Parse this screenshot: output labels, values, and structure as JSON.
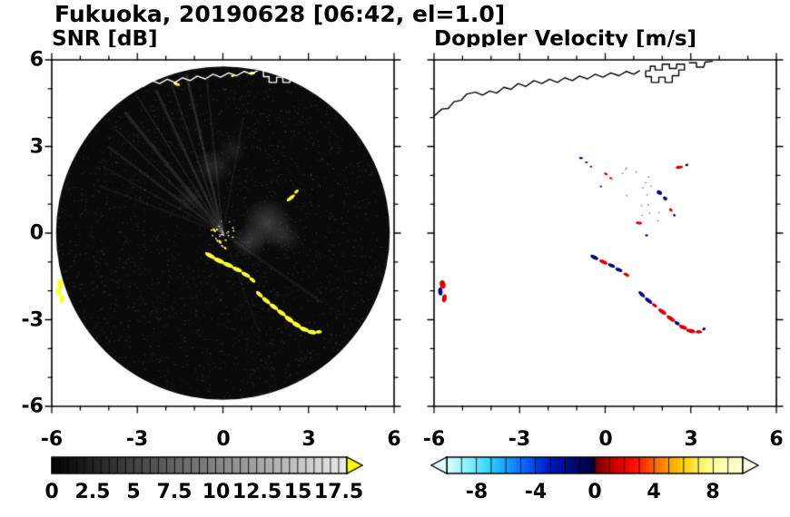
{
  "header": {
    "title": "Fukuoka, 20190628 [06:42, el=1.0]"
  },
  "colors": {
    "background": "#ffffff",
    "text": "#000000",
    "snr_echo": "#ffff3c",
    "vel_positive": "#d40000",
    "vel_negative": "#000078",
    "snr_disc": "#0a0a0a",
    "coast_snr": "#ffffff",
    "coast_vel": "#000000",
    "snr_overflow_arrow": "#ffff00"
  },
  "coastline": {
    "segments": [
      [
        [
          -6.0,
          4.05
        ],
        [
          -5.72,
          4.3
        ],
        [
          -5.5,
          4.32
        ],
        [
          -5.3,
          4.55
        ],
        [
          -5.05,
          4.6
        ],
        [
          -4.85,
          4.82
        ],
        [
          -4.55,
          4.88
        ],
        [
          -4.3,
          4.78
        ],
        [
          -4.05,
          4.92
        ],
        [
          -3.8,
          4.85
        ],
        [
          -3.55,
          5.05
        ],
        [
          -3.3,
          4.98
        ],
        [
          -3.05,
          5.18
        ],
        [
          -2.78,
          5.08
        ],
        [
          -2.5,
          5.28
        ],
        [
          -2.22,
          5.18
        ],
        [
          -1.95,
          5.33
        ],
        [
          -1.68,
          5.22
        ],
        [
          -1.42,
          5.38
        ],
        [
          -1.15,
          5.28
        ],
        [
          -0.9,
          5.44
        ],
        [
          -0.62,
          5.34
        ],
        [
          -0.35,
          5.5
        ],
        [
          -0.08,
          5.4
        ],
        [
          0.2,
          5.55
        ],
        [
          0.48,
          5.45
        ],
        [
          0.75,
          5.6
        ],
        [
          1.0,
          5.5
        ],
        [
          1.2,
          5.62
        ]
      ],
      [
        [
          1.42,
          5.62
        ],
        [
          1.42,
          5.42
        ],
        [
          1.62,
          5.42
        ],
        [
          1.62,
          5.22
        ],
        [
          1.88,
          5.22
        ],
        [
          1.88,
          5.4
        ],
        [
          2.1,
          5.4
        ],
        [
          2.1,
          5.22
        ],
        [
          2.35,
          5.22
        ],
        [
          2.35,
          5.45
        ],
        [
          2.58,
          5.45
        ],
        [
          2.58,
          5.65
        ],
        [
          2.78,
          5.65
        ],
        [
          2.78,
          5.85
        ],
        [
          2.5,
          5.85
        ],
        [
          2.5,
          5.7
        ],
        [
          2.25,
          5.7
        ],
        [
          2.25,
          5.85
        ],
        [
          2.0,
          5.85
        ],
        [
          2.0,
          5.65
        ],
        [
          1.75,
          5.65
        ],
        [
          1.75,
          5.78
        ],
        [
          1.58,
          5.78
        ],
        [
          1.58,
          5.62
        ],
        [
          1.42,
          5.62
        ]
      ],
      [
        [
          2.95,
          5.9
        ],
        [
          3.2,
          5.9
        ],
        [
          3.2,
          5.75
        ],
        [
          3.45,
          5.75
        ],
        [
          3.5,
          5.92
        ],
        [
          3.75,
          5.95
        ]
      ]
    ]
  },
  "chart_data": [
    {
      "type": "heatmap",
      "panel_id": "snr",
      "title": "SNR [dB]",
      "xlim": [
        -6,
        6
      ],
      "ylim": [
        -6,
        6
      ],
      "xticks": [
        -6,
        -3,
        0,
        3,
        6
      ],
      "yticks": [
        -6,
        -3,
        0,
        3,
        6
      ],
      "xtick_labels": [
        "-6",
        "-3",
        "0",
        "3",
        "6"
      ],
      "ytick_labels": [
        "6",
        "3",
        "0",
        "-3",
        "-6"
      ],
      "grid": false,
      "colorbar": {
        "range": [
          0,
          18
        ],
        "tick_step": 0.5,
        "values": [
          0,
          2.5,
          5,
          7.5,
          10,
          12.5,
          15,
          17.5
        ],
        "labels": [
          "0",
          "2.5",
          "5",
          "7.5",
          "10",
          "12.5",
          "15",
          "17.5"
        ],
        "colormap": "grayscale",
        "overflow_arrow_color": "#ffff00"
      },
      "radar_disc": {
        "center": [
          0,
          0
        ],
        "radius": 5.85,
        "color": "#0a0a0a"
      },
      "coast_color": "#ffffff",
      "echo_colors": {
        "y": "#ffff3c"
      },
      "rays": [
        {
          "ang": 96,
          "len": 5.4,
          "w": 2,
          "al": 0.08
        },
        {
          "ang": 103,
          "len": 5.7,
          "w": 3,
          "al": 0.12
        },
        {
          "ang": 109,
          "len": 5.6,
          "w": 2,
          "al": 0.09
        },
        {
          "ang": 115,
          "len": 5.5,
          "w": 3,
          "al": 0.11
        },
        {
          "ang": 122,
          "len": 5.5,
          "w": 2,
          "al": 0.08
        },
        {
          "ang": 129,
          "len": 5.4,
          "w": 4,
          "al": 0.1
        },
        {
          "ang": 136,
          "len": 5.2,
          "w": 2,
          "al": 0.07
        },
        {
          "ang": 143,
          "len": 5.0,
          "w": 3,
          "al": 0.08
        },
        {
          "ang": 151,
          "len": 4.8,
          "w": 2,
          "al": 0.06
        },
        {
          "ang": 159,
          "len": 4.6,
          "w": 2,
          "al": 0.05
        },
        {
          "ang": 80,
          "len": 4.0,
          "w": 2,
          "al": 0.05
        },
        {
          "ang": -35,
          "len": 4.2,
          "w": 3,
          "al": 0.05
        },
        {
          "ang": -70,
          "len": 3.6,
          "w": 2,
          "al": 0.04
        }
      ],
      "blobs": [
        {
          "x": 1.55,
          "y": 0.35,
          "r": 0.9,
          "al": 0.22
        },
        {
          "x": 0.9,
          "y": -0.3,
          "r": 0.6,
          "al": 0.18
        },
        {
          "x": 2.2,
          "y": -0.15,
          "r": 0.55,
          "al": 0.12
        },
        {
          "x": -0.3,
          "y": 2.3,
          "r": 0.65,
          "al": 0.12
        },
        {
          "x": 0.35,
          "y": 2.9,
          "r": 0.5,
          "al": 0.09
        },
        {
          "x": -1.2,
          "y": 1.2,
          "r": 0.5,
          "al": 0.08
        }
      ],
      "echoes": [
        {
          "x": -0.45,
          "y": -0.78,
          "w": 0.4,
          "h": 0.15,
          "rot": -30
        },
        {
          "x": -0.14,
          "y": -0.95,
          "w": 0.42,
          "h": 0.16,
          "rot": -25
        },
        {
          "x": 0.18,
          "y": -1.1,
          "w": 0.4,
          "h": 0.15,
          "rot": -22
        },
        {
          "x": 0.5,
          "y": -1.26,
          "w": 0.38,
          "h": 0.14,
          "rot": -22
        },
        {
          "x": 0.8,
          "y": -1.44,
          "w": 0.34,
          "h": 0.14,
          "rot": -28
        },
        {
          "x": 1.03,
          "y": -1.62,
          "w": 0.26,
          "h": 0.12,
          "rot": -38
        },
        {
          "x": 1.28,
          "y": -2.12,
          "w": 0.3,
          "h": 0.13,
          "rot": -42
        },
        {
          "x": 1.52,
          "y": -2.34,
          "w": 0.34,
          "h": 0.14,
          "rot": -38
        },
        {
          "x": 1.78,
          "y": -2.55,
          "w": 0.36,
          "h": 0.15,
          "rot": -35
        },
        {
          "x": 2.05,
          "y": -2.76,
          "w": 0.36,
          "h": 0.15,
          "rot": -34
        },
        {
          "x": 2.32,
          "y": -2.98,
          "w": 0.38,
          "h": 0.16,
          "rot": -35
        },
        {
          "x": 2.58,
          "y": -3.17,
          "w": 0.36,
          "h": 0.16,
          "rot": -30
        },
        {
          "x": 2.85,
          "y": -3.33,
          "w": 0.36,
          "h": 0.16,
          "rot": -20
        },
        {
          "x": 3.12,
          "y": -3.43,
          "w": 0.34,
          "h": 0.15,
          "rot": -10
        },
        {
          "x": 3.36,
          "y": -3.42,
          "w": 0.22,
          "h": 0.12,
          "rot": 6
        },
        {
          "x": -5.7,
          "y": -1.75,
          "w": 0.2,
          "h": 0.34,
          "rot": 15
        },
        {
          "x": -5.76,
          "y": -2.02,
          "w": 0.18,
          "h": 0.32,
          "rot": 4
        },
        {
          "x": -5.64,
          "y": -2.28,
          "w": 0.17,
          "h": 0.3,
          "rot": -12
        },
        {
          "x": 2.38,
          "y": 1.22,
          "w": 0.36,
          "h": 0.12,
          "rot": 38
        },
        {
          "x": 2.58,
          "y": 1.44,
          "w": 0.18,
          "h": 0.1,
          "rot": 38
        },
        {
          "x": -1.62,
          "y": 5.16,
          "w": 0.24,
          "h": 0.1,
          "rot": -18
        },
        {
          "x": 1.02,
          "y": 5.54,
          "w": 0.22,
          "h": 0.1,
          "rot": 8
        },
        {
          "x": 0.34,
          "y": 5.44,
          "w": 0.12,
          "h": 0.08,
          "rot": 0
        },
        {
          "x": -0.3,
          "y": 0.1,
          "w": 0.16,
          "h": 0.08,
          "rot": -45
        },
        {
          "x": -0.1,
          "y": -0.3,
          "w": 0.15,
          "h": 0.08,
          "rot": -55
        },
        {
          "x": 0.08,
          "y": -0.52,
          "w": 0.13,
          "h": 0.07,
          "rot": -50
        }
      ]
    },
    {
      "type": "heatmap",
      "panel_id": "vel",
      "title": "Doppler Velocity [m/s]",
      "xlim": [
        -6,
        6
      ],
      "ylim": [
        -6,
        6
      ],
      "xticks": [
        -6,
        -3,
        0,
        3,
        6
      ],
      "yticks": [
        -6,
        -3,
        0,
        3,
        6
      ],
      "xtick_labels": [
        "-6",
        "-3",
        "0",
        "3",
        "6"
      ],
      "ytick_labels": [],
      "grid": false,
      "colorbar": {
        "range": [
          -10,
          10
        ],
        "tick_step": 1,
        "values": [
          -8,
          -4,
          0,
          4,
          8
        ],
        "labels": [
          "-8",
          "-4",
          "0",
          "4",
          "8"
        ],
        "colormap_stops": [
          [
            0.0,
            "#d8ffff"
          ],
          [
            0.05,
            "#a0f8ff"
          ],
          [
            0.1,
            "#64e8ff"
          ],
          [
            0.15,
            "#30ccff"
          ],
          [
            0.2,
            "#18a0ff"
          ],
          [
            0.25,
            "#1070ff"
          ],
          [
            0.3,
            "#0840e8"
          ],
          [
            0.35,
            "#0018c0"
          ],
          [
            0.4,
            "#000d90"
          ],
          [
            0.45,
            "#000560"
          ],
          [
            0.495,
            "#000338"
          ],
          [
            0.505,
            "#700000"
          ],
          [
            0.55,
            "#b80000"
          ],
          [
            0.6,
            "#e80000"
          ],
          [
            0.65,
            "#ff2000"
          ],
          [
            0.7,
            "#ff6000"
          ],
          [
            0.75,
            "#ffa000"
          ],
          [
            0.8,
            "#ffd000"
          ],
          [
            0.85,
            "#fff060"
          ],
          [
            0.9,
            "#ffffa0"
          ],
          [
            1.0,
            "#ffffd8"
          ]
        ],
        "underflow_arrow_color": "#e0ffff",
        "overflow_arrow_color": "#ffffe8"
      },
      "coast_color": "#000000",
      "echo_colors": {
        "r": "#d40000",
        "b": "#000078",
        "k": "#303030"
      },
      "echoes": [
        {
          "x": -5.7,
          "y": -1.78,
          "w": 0.2,
          "h": 0.3,
          "rot": 12,
          "v": "r"
        },
        {
          "x": -5.78,
          "y": -2.02,
          "w": 0.15,
          "h": 0.28,
          "rot": 4,
          "v": "b"
        },
        {
          "x": -5.64,
          "y": -2.26,
          "w": 0.16,
          "h": 0.28,
          "rot": -10,
          "v": "r"
        },
        {
          "x": -0.38,
          "y": -0.84,
          "w": 0.3,
          "h": 0.13,
          "rot": -28,
          "v": "b"
        },
        {
          "x": -0.06,
          "y": -1.0,
          "w": 0.3,
          "h": 0.13,
          "rot": -24,
          "v": "r"
        },
        {
          "x": 0.22,
          "y": -1.12,
          "w": 0.26,
          "h": 0.12,
          "rot": -22,
          "v": "b"
        },
        {
          "x": 0.48,
          "y": -1.27,
          "w": 0.26,
          "h": 0.12,
          "rot": -22,
          "v": "b"
        },
        {
          "x": 0.74,
          "y": -1.44,
          "w": 0.22,
          "h": 0.11,
          "rot": -28,
          "v": "r"
        },
        {
          "x": 1.28,
          "y": -2.12,
          "w": 0.28,
          "h": 0.12,
          "rot": -42,
          "v": "b"
        },
        {
          "x": 1.52,
          "y": -2.34,
          "w": 0.3,
          "h": 0.13,
          "rot": -38,
          "v": "b"
        },
        {
          "x": 1.73,
          "y": -2.5,
          "w": 0.2,
          "h": 0.11,
          "rot": -36,
          "v": "r"
        },
        {
          "x": 2.0,
          "y": -2.72,
          "w": 0.32,
          "h": 0.14,
          "rot": -34,
          "v": "r"
        },
        {
          "x": 2.3,
          "y": -2.96,
          "w": 0.34,
          "h": 0.14,
          "rot": -34,
          "v": "r"
        },
        {
          "x": 2.52,
          "y": -3.12,
          "w": 0.2,
          "h": 0.12,
          "rot": -30,
          "v": "b"
        },
        {
          "x": 2.73,
          "y": -3.26,
          "w": 0.3,
          "h": 0.14,
          "rot": -22,
          "v": "r"
        },
        {
          "x": 3.0,
          "y": -3.39,
          "w": 0.32,
          "h": 0.14,
          "rot": -12,
          "v": "r"
        },
        {
          "x": 3.28,
          "y": -3.42,
          "w": 0.22,
          "h": 0.12,
          "rot": 0,
          "v": "r"
        },
        {
          "x": 3.46,
          "y": -3.32,
          "w": 0.12,
          "h": 0.1,
          "rot": 20,
          "v": "b"
        },
        {
          "x": -0.85,
          "y": 2.6,
          "w": 0.12,
          "h": 0.08,
          "rot": 0,
          "v": "b"
        },
        {
          "x": -0.66,
          "y": 2.45,
          "w": 0.1,
          "h": 0.07,
          "rot": 0,
          "v": "b"
        },
        {
          "x": -0.5,
          "y": 2.3,
          "w": 0.08,
          "h": 0.06,
          "rot": 0,
          "v": "b"
        },
        {
          "x": 0.02,
          "y": 2.05,
          "w": 0.14,
          "h": 0.08,
          "rot": -20,
          "v": "r"
        },
        {
          "x": 0.2,
          "y": 1.9,
          "w": 0.12,
          "h": 0.07,
          "rot": -20,
          "v": "r"
        },
        {
          "x": -0.15,
          "y": 1.62,
          "w": 0.08,
          "h": 0.06,
          "rot": 0,
          "v": "b"
        },
        {
          "x": 1.9,
          "y": 1.4,
          "w": 0.2,
          "h": 0.14,
          "rot": -30,
          "v": "b"
        },
        {
          "x": 2.1,
          "y": 1.2,
          "w": 0.16,
          "h": 0.12,
          "rot": -30,
          "v": "b"
        },
        {
          "x": 2.3,
          "y": 0.8,
          "w": 0.14,
          "h": 0.1,
          "rot": -40,
          "v": "r"
        },
        {
          "x": 2.42,
          "y": 0.62,
          "w": 0.1,
          "h": 0.08,
          "rot": -40,
          "v": "b"
        },
        {
          "x": 1.18,
          "y": 0.35,
          "w": 0.22,
          "h": 0.1,
          "rot": -10,
          "v": "r"
        },
        {
          "x": 1.45,
          "y": -0.08,
          "w": 0.1,
          "h": 0.08,
          "rot": 0,
          "v": "b"
        },
        {
          "x": 2.6,
          "y": 2.28,
          "w": 0.26,
          "h": 0.1,
          "rot": 8,
          "v": "r"
        },
        {
          "x": 2.86,
          "y": 2.36,
          "w": 0.12,
          "h": 0.08,
          "rot": 8,
          "v": "b"
        }
      ]
    }
  ]
}
